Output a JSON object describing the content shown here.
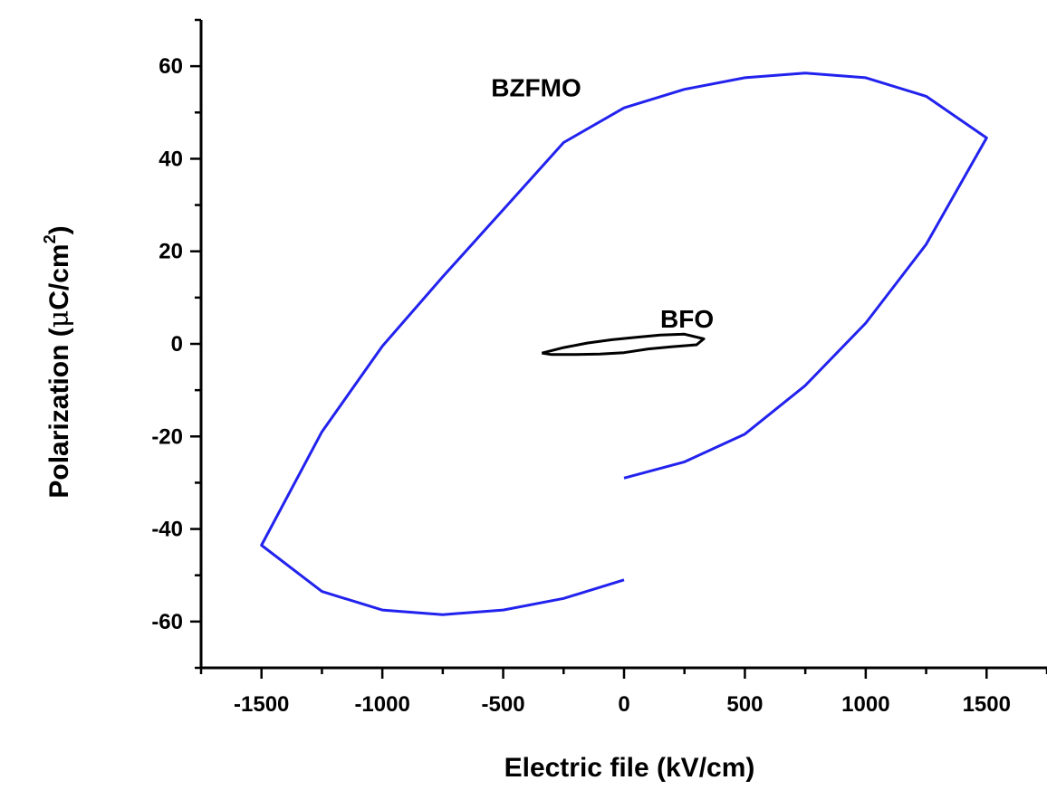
{
  "chart_data": {
    "type": "line",
    "title": "",
    "xlabel": "Electric file (kV/cm)",
    "ylabel_main": "Polarization (",
    "ylabel_mu": "μ",
    "ylabel_unit": "C/cm",
    "ylabel_sup": "2",
    "ylabel_close": ")",
    "xlim": [
      -1750,
      1750
    ],
    "ylim": [
      -70,
      70
    ],
    "x_ticks": [
      -1500,
      -1000,
      -500,
      0,
      500,
      1000,
      1500
    ],
    "x_tick_labels": [
      "-1500",
      "-1000",
      "-500",
      "0",
      "500",
      "1000",
      "1500"
    ],
    "y_ticks": [
      -60,
      -40,
      -20,
      0,
      20,
      40,
      60
    ],
    "y_tick_labels": [
      "-60",
      "-40",
      "-20",
      "0",
      "20",
      "40",
      "60"
    ],
    "grid": false,
    "colors": {
      "BZFMO": "#2222ee",
      "BFO": "#000000"
    },
    "series": [
      {
        "name": "BZFMO",
        "x": [
          0,
          250,
          500,
          750,
          1000,
          1250,
          1500,
          1250,
          1000,
          750,
          500,
          250,
          0,
          -250,
          -500,
          -750,
          -1000,
          -1250,
          -1500,
          -1250,
          -1000,
          -750,
          -500,
          -250,
          0
        ],
        "y": [
          -29,
          -25.5,
          -19.5,
          -9,
          4.5,
          21.5,
          44.5,
          53.5,
          57.5,
          58.5,
          57.5,
          55,
          51,
          43.5,
          29,
          14.5,
          -0.5,
          -19,
          -43.5,
          -53.5,
          -57.5,
          -58.5,
          -57.5,
          -55,
          -51
        ]
      },
      {
        "name": "BFO",
        "x": [
          -340,
          -250,
          -150,
          -50,
          50,
          150,
          250,
          330,
          300,
          200,
          100,
          0,
          -100,
          -200,
          -300,
          -340
        ],
        "y": [
          -2,
          -0.8,
          0.2,
          0.9,
          1.4,
          1.9,
          2.1,
          1.1,
          -0.2,
          -0.6,
          -1.1,
          -1.9,
          -2.2,
          -2.3,
          -2.3,
          -2
        ]
      }
    ],
    "annotations": [
      {
        "text": "BZFMO",
        "x": -550,
        "y": 53.5
      },
      {
        "text": "BFO",
        "x": 150,
        "y": 3.5
      }
    ]
  }
}
